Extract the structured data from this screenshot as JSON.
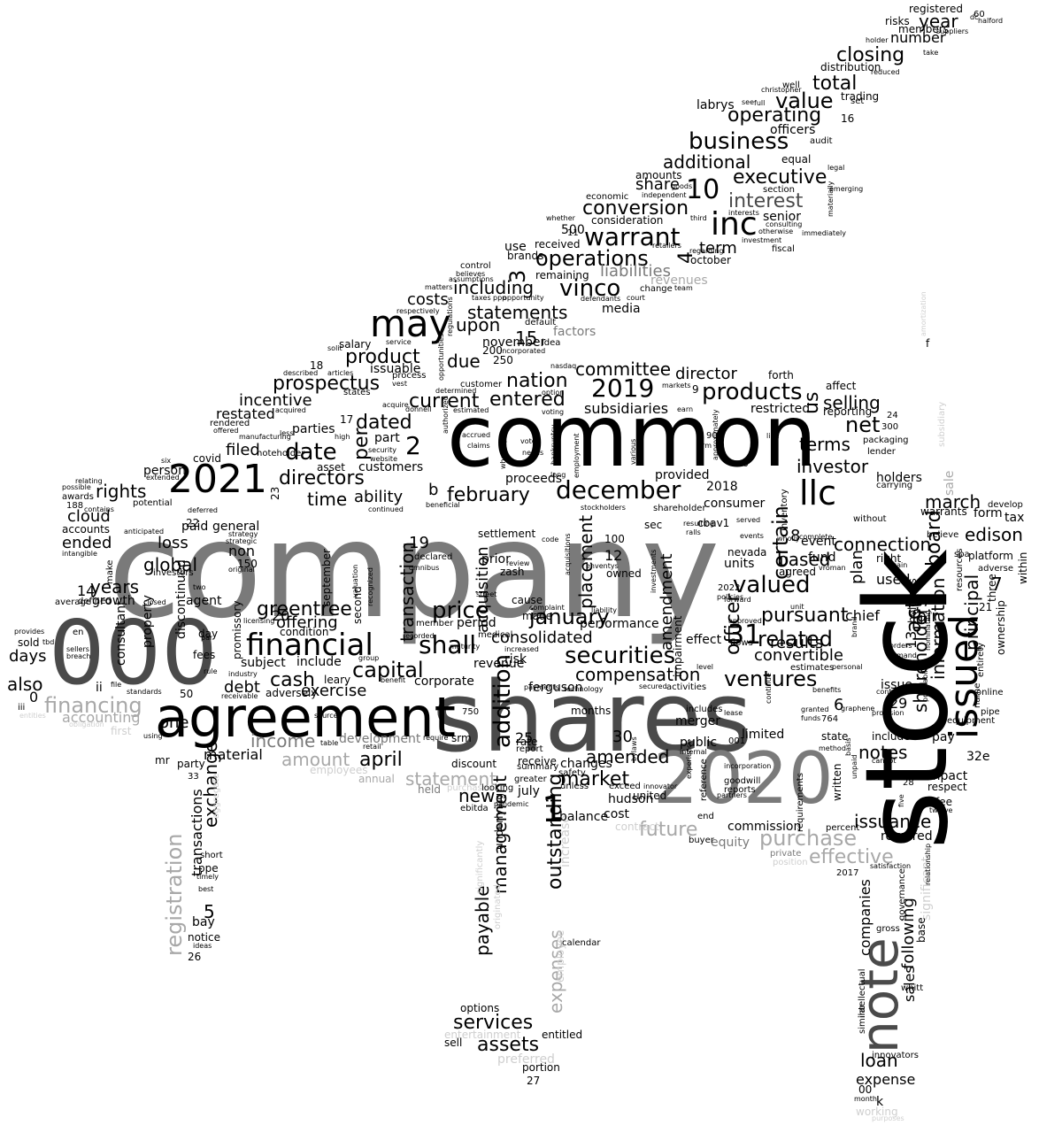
{
  "colors": {
    "black": "#000000",
    "dark": "#4a4a4a",
    "mid": "#7a7a7a",
    "light": "#a8a8a8",
    "pale": "#cfcfcf"
  },
  "words": {
    "company": "company",
    "stock": "stock",
    "shares": "shares",
    "common": "common",
    "n000": "000",
    "agreement": "agreement",
    "n2020": "2020",
    "note": "note",
    "issued": "issued",
    "n2021": "2021",
    "financial": "financial",
    "may": "may",
    "inc": "inc",
    "llc": "llc",
    "december": "december",
    "securities": "securities",
    "price": "price",
    "n31": "31",
    "shall": "shall",
    "valued": "valued",
    "related": "related",
    "ventures": "ventures",
    "date": "date",
    "directors": "directors",
    "warrant": "warrant",
    "business": "business",
    "operating": "operating",
    "products": "products",
    "n2019": "2019",
    "capital": "capital",
    "cash": "cash",
    "consolidated": "consolidated",
    "compensation": "compensation",
    "january": "january",
    "operations": "operations",
    "conversion": "conversion",
    "interest": "interest",
    "executive": "executive",
    "additional": "additional",
    "value": "value",
    "total": "total",
    "closing": "closing",
    "number": "number",
    "year": "year",
    "statements": "statements",
    "including": "including",
    "vinco": "vinco",
    "costs": "costs",
    "upon": "upon",
    "due": "due",
    "product": "product",
    "prospectus": "prospectus",
    "incentive": "incentive",
    "restated": "restated",
    "filed": "filed",
    "rights": "rights",
    "cloud": "cloud",
    "ended": "ended",
    "years": "years",
    "global": "global",
    "loss": "loss",
    "greentree": "greentree",
    "offering": "offering",
    "exercise": "exercise",
    "debt": "debt",
    "income": "income",
    "amount": "amount",
    "april": "april",
    "financing": "financing",
    "accounting": "accounting",
    "also": "also",
    "days": "days",
    "one": "one",
    "material": "material",
    "statement": "statement",
    "market": "market",
    "amended": "amended",
    "new": "new",
    "future": "future",
    "purchase": "purchase",
    "effective": "effective",
    "issuance": "issuance",
    "loan": "loan",
    "expense": "expense",
    "notes": "notes",
    "shareholders": "shareholders",
    "information": "information",
    "principal": "principal",
    "board": "board",
    "connection": "connection",
    "investor": "investor",
    "terms": "terms",
    "net": "net",
    "selling": "selling",
    "march": "march",
    "edison": "edison",
    "act": "act",
    "pursuant": "pursuant",
    "results": "results",
    "based": "based",
    "certain": "certain",
    "officer": "officer",
    "convertible": "convertible",
    "committee": "committee",
    "director": "director",
    "nation": "nation",
    "entered": "entered",
    "current": "current",
    "subsidiaries": "subsidiaries",
    "dated": "dated",
    "february": "february",
    "time": "time",
    "ability": "ability",
    "placement": "placement",
    "transaction": "transaction",
    "acquisition": "acquisition",
    "amendment": "amendment",
    "management": "management",
    "payable": "payable",
    "outstanding": "outstanding",
    "expenses": "expenses",
    "services": "services",
    "assets": "assets",
    "addition": "addition",
    "registration": "registration",
    "exchange": "exchange",
    "sales": "sales",
    "following": "following",
    "companies": "companies",
    "liabilities": "liabilities",
    "term": "term",
    "share": "share",
    "n10": "10",
    "n2": "2",
    "n1": "1",
    "n3": "3",
    "n4": "4",
    "n5": "5",
    "n6": "6",
    "n7": "7",
    "n8": "8",
    "n12": "12",
    "n14": "14",
    "n15": "15",
    "n19": "19",
    "n20": "20",
    "n25": "25",
    "n29": "29",
    "n30": "30",
    "n2018": "2018",
    "n500": "500",
    "n100": "100",
    "us": "us",
    "b": "b",
    "per": "per",
    "plan": "plan",
    "used": "used",
    "fair": "fair",
    "chief": "chief",
    "issue": "issue",
    "merger": "merger",
    "limited": "limited",
    "public": "public",
    "effect": "effect",
    "hudson": "hudson",
    "cost": "cost",
    "performance": "performance",
    "revenue": "revenue",
    "corporate": "corporate",
    "risk": "risk",
    "ferguson": "ferguson",
    "prior": "prior",
    "cause": "cause",
    "made": "made",
    "period": "period",
    "proceeds": "proceeds",
    "consumer": "consumer",
    "units": "units",
    "fund": "fund",
    "holders": "holders",
    "required": "required",
    "impact": "impact",
    "pay": "pay",
    "form": "form",
    "sale": "sale",
    "tax": "tax",
    "within": "within",
    "significant": "significant",
    "commission": "commission",
    "equity": "equity",
    "agent": "agent",
    "growth": "growth",
    "non": "non",
    "general": "general",
    "paid": "paid",
    "parties": "parties",
    "part": "part",
    "customers": "customers",
    "person": "person",
    "subject": "subject",
    "include": "include",
    "development": "development",
    "party": "party",
    "bay": "bay",
    "media": "media",
    "factors": "factors",
    "sold": "sold",
    "mr": "mr",
    "first": "first",
    "september": "september",
    "second": "second",
    "state": "state",
    "included": "included",
    "k": "k",
    "working": "working",
    "entertainment": "entertainment",
    "sell": "sell",
    "preferred": "preferred",
    "portion": "portion",
    "entitled": "entitled",
    "options": "options",
    "increase": "increase",
    "employee": "employee",
    "july": "july",
    "changes": "changes",
    "balance": "balance",
    "united": "united",
    "settlement": "settlement",
    "event": "event",
    "agreed": "agreed",
    "n9": "9",
    "n0": "0",
    "n16": "16",
    "n17": "17",
    "n18": "18",
    "n22": "22",
    "n21": "21",
    "n23": "23",
    "n26": "26",
    "n27": "27",
    "n32e": "32e",
    "n00": "00",
    "october": "october",
    "senior": "senior",
    "consideration": "consideration",
    "fee": "fee",
    "respect": "respect",
    "equal": "equal",
    "officers": "officers",
    "distribution": "distribution",
    "members": "members",
    "risks": "risks",
    "registered": "registered",
    "brands": "brands",
    "use": "use",
    "received": "received",
    "remaining": "remaining",
    "default": "default",
    "november": "november",
    "issuable": "issuable",
    "salary": "salary",
    "revenues": "revenues",
    "labrys": "labrys",
    "amounts": "amounts",
    "affect": "affect",
    "reporting": "reporting",
    "restricted": "restricted",
    "forth": "forth",
    "provided": "provided",
    "sec": "sec",
    "cbav1": "cbav1",
    "nevada": "nevada",
    "owned": "owned",
    "declared": "declared",
    "zash": "zash",
    "discount": "discount",
    "months": "months",
    "srm": "srm",
    "holdings": "holdings",
    "warrants": "warrants",
    "right": "right",
    "f": "f",
    "ended_small": "ii",
    "penny": "iii",
    "accounts": "accounts",
    "defined": "defined",
    "make": "make",
    "awards": "awards",
    "covid": "covid",
    "manufacturing": "manufacturing",
    "noteholder": "noteholder",
    "asset": "asset",
    "fees": "fees",
    "day": "day",
    "ppe": "ppe",
    "short": "short",
    "notice": "notice",
    "transactions": "transactions",
    "aggregate": "aggregate",
    "property": "property",
    "discontinued": "discontinued",
    "consultant": "consultant",
    "promissory": "promissory",
    "condition": "condition",
    "adversely": "adversely",
    "leary": "leary",
    "n50": "50",
    "n150": "150",
    "n200": "200",
    "n250": "250",
    "n40": "40",
    "n900": "900",
    "n764": "764",
    "n750": "750",
    "n001": "001",
    "n24": "24",
    "n28": "28",
    "n33": "33",
    "n60": "60",
    "n2022": "2022",
    "n2017": "2017",
    "n188": "188",
    "n300": "300",
    "n13": "13",
    "n11": "11",
    "calendar": "calendar",
    "contract": "contract",
    "purchased": "purchased",
    "annual": "annual",
    "held": "held",
    "employees": "employees",
    "ebitda": "ebitda",
    "underlying": "underlying",
    "originated": "originated",
    "significantly": "significantly",
    "looking": "looking",
    "greater": "greater",
    "receive": "receive",
    "report": "report",
    "rate": "rate",
    "summary": "summary",
    "safety": "safety",
    "unless": "unless",
    "exceed": "exceed",
    "reference": "reference",
    "goodwill": "goodwill",
    "reports": "reports",
    "private": "private",
    "position": "position",
    "buyer": "buyer",
    "end": "end",
    "requirements": "requirements",
    "written": "written",
    "percent": "percent",
    "base": "base",
    "whitt": "whitt",
    "gross": "gross",
    "governance": "governance",
    "intellectual": "intellectual",
    "innovators": "innovators",
    "similar": "similar",
    "month": "month",
    "purposes": "purposes",
    "pipe": "pipe",
    "equipment": "equipment",
    "online": "online",
    "ownership": "ownership",
    "name": "name",
    "entirety": "entirety",
    "three": "three",
    "platform": "platform",
    "adverse": "adverse",
    "resources": "resources",
    "spa": "spa",
    "develop": "develop",
    "believe": "believe",
    "without": "without",
    "lender": "lender",
    "packaging": "packaging",
    "carrying": "carrying",
    "subsidiary": "subsidiary",
    "amortization": "amortization",
    "fiscal": "fiscal",
    "investment": "investment",
    "otherwise": "otherwise",
    "consulting": "consulting",
    "immediately": "immediately",
    "emerging": "emerging",
    "legal": "legal",
    "section": "section",
    "audit": "audit",
    "christopher": "christopher",
    "independent": "independent",
    "goods": "goods",
    "economic": "economic",
    "whether": "whether",
    "retailers": "retailers",
    "regarding": "regarding",
    "third": "third",
    "interests": "interests",
    "team": "team",
    "change": "change",
    "court": "court",
    "defendants": "defendants",
    "opportunity": "opportunity",
    "taxes": "taxes",
    "ppp": "ppp",
    "believes": "believes",
    "control": "control",
    "assumptions": "assumptions",
    "matters": "matters",
    "respectively": "respectively",
    "regulations": "regulations",
    "opportunities": "opportunities",
    "incorporated": "incorporated",
    "idea": "idea",
    "nasdaq": "nasdaq",
    "option": "option",
    "voting": "voting",
    "vest": "vest",
    "process": "process",
    "described": "described",
    "articles": "articles",
    "solit": "solit",
    "service": "service",
    "states": "states",
    "acquire": "acquire",
    "determined": "determined",
    "estimated": "estimated",
    "acquired": "acquired",
    "customer": "customer",
    "authorized": "authorized",
    "donnell": "donnell",
    "accrued": "accrued",
    "claims": "claims",
    "whereby": "whereby",
    "vote": "vote",
    "needs": "needs",
    "bankruptcy": "bankruptcy",
    "employment": "employment",
    "long": "long",
    "various": "various",
    "firm": "firm",
    "approximately": "approximately",
    "line": "line",
    "earn": "earn",
    "markets": "markets",
    "inventory": "inventory",
    "shareholder": "shareholder",
    "stockholders": "stockholders",
    "beneficial": "beneficial",
    "continued": "continued",
    "omnibus": "omnibus",
    "street": "street",
    "review": "review",
    "code": "code",
    "liability": "liability",
    "acquisitions": "acquisitions",
    "enventys": "enventys",
    "resulting": "resulting",
    "ralls": "ralls",
    "events": "events",
    "served": "served",
    "wholly": "wholly",
    "complete": "complete",
    "gain": "gain",
    "vroman": "vroman",
    "investments": "investments",
    "impairment": "impairment",
    "forward": "forward",
    "approved": "approved",
    "flows": "flows",
    "unit": "unit",
    "level": "level",
    "policies": "policies",
    "personal": "personal",
    "estimates": "estimates",
    "orders": "orders",
    "demand": "demand",
    "brand": "brand",
    "recorded": "recorded",
    "member": "member",
    "maturity": "maturity",
    "medical": "medical",
    "increased": "increased",
    "payments": "payments",
    "technology": "technology",
    "secured": "secured",
    "activities": "activities",
    "includes": "includes",
    "lease": "lease",
    "continue": "continue",
    "granted": "granted",
    "funds": "funds",
    "graphene": "graphene",
    "benefits": "benefits",
    "provision": "provision",
    "method": "method",
    "basis": "basis",
    "unpaid": "unpaid",
    "cannot": "cannot",
    "five": "five",
    "twelve": "twelve",
    "contained": "contained",
    "satisfaction": "satisfaction",
    "relationship": "relationship",
    "profitability": "profitability",
    "nominating": "nominating",
    "incorporation": "incorporation",
    "experience": "experience",
    "internal": "internal",
    "bylaws": "bylaws",
    "innovator": "innovator",
    "partners": "partners",
    "complaint": "complaint",
    "pandemic": "pandemic",
    "require": "require",
    "retail": "retail",
    "benefit": "benefit",
    "group": "group",
    "table": "table",
    "sources": "sources",
    "entities": "entities",
    "obligation": "obligation",
    "standards": "standards",
    "using": "using",
    "receivable": "receivable",
    "licensing": "licensing",
    "recognized": "recognized",
    "valuation": "valuation",
    "original": "original",
    "investors": "investors",
    "closed": "closed",
    "two": "two",
    "anticipated": "anticipated",
    "deferred": "deferred",
    "potential": "potential",
    "extended": "extended",
    "relating": "relating",
    "possible": "possible",
    "six": "six",
    "less": "less",
    "high": "high",
    "security": "security",
    "website": "website",
    "rendered": "rendered",
    "offered": "offered",
    "intangible": "intangible",
    "contains": "contains",
    "provides": "provides",
    "tbd": "tbd",
    "sellers": "sellers",
    "breach": "breach",
    "en": "en",
    "average": "average",
    "par": "par",
    "rule": "rule",
    "timely": "timely",
    "best": "best",
    "ideas": "ideas",
    "strategy": "strategy",
    "strategic": "strategic",
    "industry": "industry",
    "file": "file",
    "dc": "dc",
    "halford": "halford",
    "suppliers": "suppliers",
    "holder": "holder",
    "take": "take",
    "reduced": "reduced",
    "trading": "trading",
    "set": "set",
    "well": "well",
    "full": "full",
    "see": "see",
    "materially": "materially"
  }
}
